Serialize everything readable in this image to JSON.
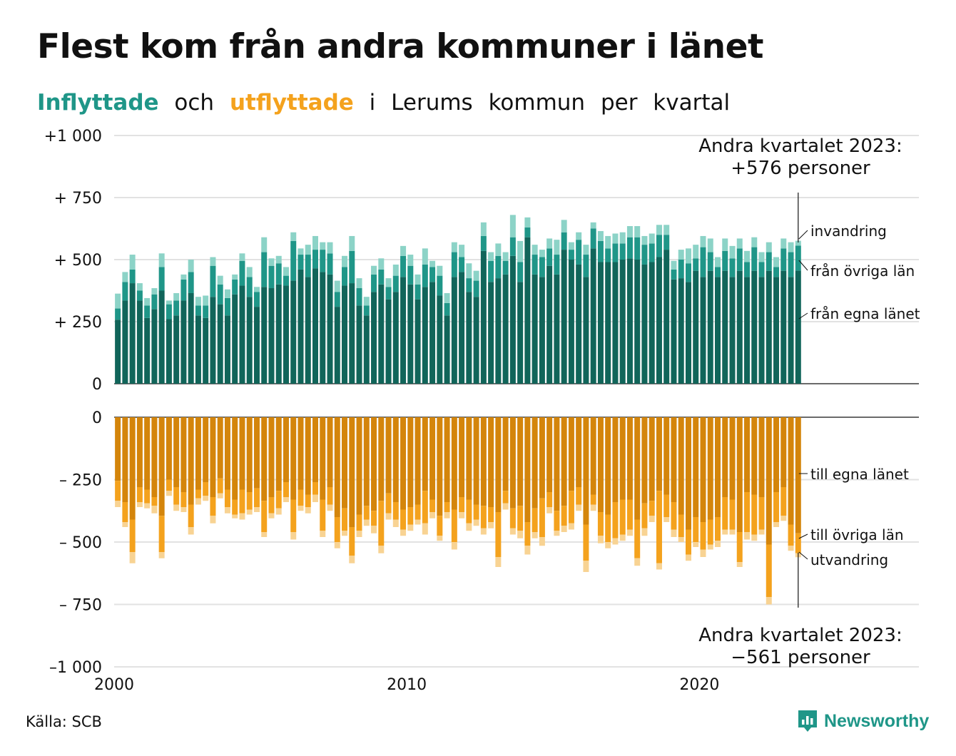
{
  "title": "Flest kom från andra kommuner i länet",
  "subtitle": {
    "word_in": "Inflyttade",
    "word_and": "och",
    "word_out": "utflyttade",
    "rest": [
      "i",
      "Lerums",
      "kommun",
      "per",
      "kvartal"
    ]
  },
  "source": "Källa: SCB",
  "logo_text": "Newsworthy",
  "colors": {
    "in_own": "#11655a",
    "in_other": "#1f9688",
    "in_abroad": "#8cd3c7",
    "out_own": "#d4850b",
    "out_other": "#f4a21d",
    "out_abroad": "#f8d393"
  },
  "chart_data": {
    "type": "bar",
    "stacked": true,
    "x_start": "2000 Q1",
    "x_end": "2023 Q2",
    "x_frequency": "quarterly",
    "x_ticks": [
      "2000",
      "2010",
      "2020"
    ],
    "top_panel": {
      "y_ticks": [
        "+1 000",
        "+  750",
        "+  500",
        "+  250",
        "0"
      ],
      "ylim": [
        0,
        1000
      ],
      "series": [
        {
          "name": "från egna länet",
          "values": [
            258,
            335,
            405,
            335,
            265,
            300,
            375,
            260,
            275,
            335,
            365,
            275,
            265,
            350,
            320,
            275,
            360,
            395,
            350,
            310,
            390,
            385,
            400,
            395,
            415,
            460,
            430,
            465,
            450,
            440,
            310,
            395,
            405,
            315,
            275,
            370,
            400,
            340,
            370,
            430,
            400,
            340,
            390,
            410,
            355,
            275,
            430,
            450,
            370,
            350,
            535,
            410,
            425,
            440,
            515,
            410,
            590,
            440,
            430,
            475,
            440,
            540,
            500,
            480,
            430,
            545,
            490,
            490,
            490,
            500,
            505,
            500,
            480,
            490,
            510,
            540,
            420,
            425,
            410,
            455,
            430,
            455,
            430,
            455,
            430,
            455,
            430,
            455,
            430,
            455,
            430,
            455,
            430,
            456
          ]
        },
        {
          "name": "från övriga län",
          "values": [
            45,
            75,
            55,
            40,
            50,
            60,
            95,
            60,
            60,
            85,
            85,
            40,
            50,
            125,
            80,
            70,
            60,
            100,
            80,
            60,
            140,
            90,
            85,
            40,
            160,
            60,
            90,
            75,
            90,
            85,
            60,
            75,
            130,
            70,
            40,
            70,
            60,
            50,
            65,
            85,
            75,
            60,
            90,
            60,
            80,
            50,
            100,
            60,
            55,
            65,
            60,
            85,
            90,
            55,
            75,
            80,
            40,
            80,
            80,
            70,
            80,
            70,
            40,
            100,
            90,
            80,
            85,
            55,
            75,
            65,
            85,
            90,
            80,
            75,
            90,
            60,
            40,
            75,
            75,
            50,
            120,
            75,
            40,
            80,
            75,
            90,
            60,
            95,
            60,
            75,
            40,
            90,
            100,
            100
          ]
        },
        {
          "name": "invandring",
          "values": [
            60,
            40,
            60,
            30,
            30,
            25,
            55,
            15,
            30,
            20,
            50,
            35,
            40,
            35,
            35,
            35,
            20,
            30,
            40,
            20,
            60,
            30,
            30,
            35,
            35,
            25,
            40,
            55,
            30,
            45,
            45,
            45,
            60,
            40,
            35,
            35,
            45,
            35,
            45,
            40,
            45,
            40,
            65,
            25,
            40,
            40,
            40,
            50,
            60,
            40,
            55,
            35,
            50,
            35,
            90,
            85,
            40,
            40,
            30,
            40,
            60,
            50,
            30,
            30,
            40,
            25,
            40,
            50,
            40,
            45,
            45,
            45,
            35,
            40,
            40,
            40,
            35,
            40,
            60,
            55,
            45,
            55,
            40,
            50,
            50,
            40,
            45,
            40,
            40,
            40,
            40,
            40,
            40,
            20
          ]
        }
      ]
    },
    "bottom_panel": {
      "y_ticks": [
        "0",
        "–  250",
        "–  500",
        "–  750",
        "–1 000"
      ],
      "ylim": [
        -1000,
        0
      ],
      "series": [
        {
          "name": "till egna länet",
          "values": [
            -255,
            -340,
            -410,
            -280,
            -290,
            -320,
            -395,
            -250,
            -280,
            -300,
            -350,
            -290,
            -260,
            -320,
            -245,
            -290,
            -330,
            -290,
            -300,
            -285,
            -335,
            -320,
            -295,
            -260,
            -330,
            -290,
            -310,
            -260,
            -330,
            -280,
            -400,
            -365,
            -440,
            -390,
            -355,
            -375,
            -335,
            -305,
            -340,
            -370,
            -360,
            -350,
            -295,
            -330,
            -395,
            -340,
            -370,
            -320,
            -330,
            -350,
            -355,
            -360,
            -380,
            -295,
            -365,
            -355,
            -420,
            -365,
            -325,
            -300,
            -375,
            -355,
            -295,
            -280,
            -430,
            -310,
            -380,
            -390,
            -340,
            -330,
            -330,
            -410,
            -345,
            -335,
            -295,
            -310,
            -340,
            -390,
            -450,
            -400,
            -420,
            -410,
            -400,
            -320,
            -330,
            -460,
            -300,
            -310,
            -320,
            -510,
            -300,
            -280,
            -430,
            -465
          ]
        },
        {
          "name": "till övriga län",
          "values": [
            -80,
            -80,
            -130,
            -60,
            -55,
            -35,
            -145,
            -45,
            -70,
            -60,
            -90,
            -35,
            -55,
            -75,
            -60,
            -70,
            -60,
            -95,
            -70,
            -75,
            -125,
            -65,
            -70,
            -60,
            -130,
            -65,
            -50,
            -50,
            -125,
            -70,
            -100,
            -90,
            -115,
            -65,
            -55,
            -60,
            -180,
            -80,
            -70,
            -80,
            -70,
            -60,
            -130,
            -50,
            -80,
            -40,
            -130,
            -60,
            -95,
            -60,
            -90,
            -60,
            -180,
            -50,
            -80,
            -100,
            -95,
            -95,
            -155,
            -60,
            -80,
            -80,
            -130,
            -70,
            -145,
            -40,
            -95,
            -110,
            -145,
            -140,
            -120,
            -155,
            -100,
            -60,
            -290,
            -90,
            -110,
            -90,
            -100,
            -100,
            -110,
            -100,
            -95,
            -130,
            -120,
            -120,
            -160,
            -160,
            -130,
            -210,
            -120,
            -115,
            -85,
            -80
          ]
        },
        {
          "name": "utvandring",
          "values": [
            -25,
            -20,
            -45,
            -20,
            -20,
            -30,
            -25,
            -20,
            -25,
            -20,
            -30,
            -25,
            -20,
            -30,
            -20,
            -25,
            -15,
            -25,
            -20,
            -20,
            -20,
            -20,
            -25,
            -20,
            -30,
            -20,
            -25,
            -30,
            -25,
            -25,
            -25,
            -20,
            -30,
            -25,
            -25,
            -30,
            -30,
            -25,
            -30,
            -25,
            -25,
            -20,
            -45,
            -25,
            -20,
            -25,
            -30,
            -25,
            -30,
            -25,
            -25,
            -25,
            -40,
            -25,
            -25,
            -30,
            -35,
            -25,
            -35,
            -25,
            -20,
            -25,
            -25,
            -25,
            -45,
            -25,
            -30,
            -25,
            -25,
            -25,
            -25,
            -30,
            -30,
            -25,
            -25,
            -20,
            -30,
            -20,
            -25,
            -20,
            -30,
            -20,
            -25,
            -20,
            -20,
            -20,
            -30,
            -25,
            -20,
            -30,
            -20,
            -20,
            -20,
            -16
          ]
        }
      ]
    },
    "annotations": {
      "top_total": [
        "Andra kvartalet 2023:",
        "+576 personer"
      ],
      "bottom_total": [
        "Andra kvartalet 2023:",
        "−561 personer"
      ],
      "top_labels": [
        "invandring",
        "från övriga län",
        "från egna länet"
      ],
      "bottom_labels": [
        "till egna länet",
        "till övriga län",
        "utvandring"
      ]
    },
    "grid": true
  }
}
